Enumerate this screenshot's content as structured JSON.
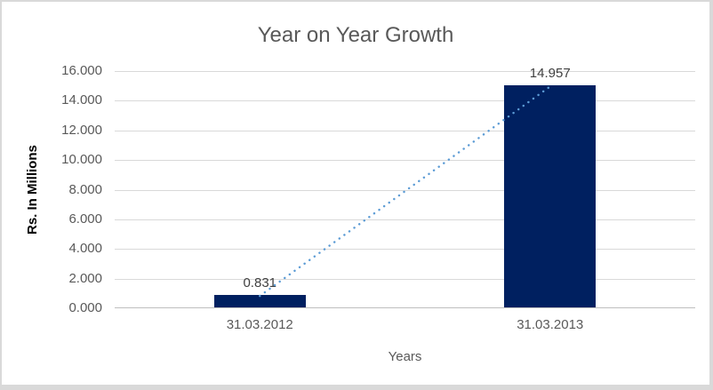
{
  "chart_data": {
    "type": "bar",
    "title": "Year on Year Growth",
    "categories": [
      "31.03.2012",
      "31.03.2013"
    ],
    "values": [
      0.831,
      14.957
    ],
    "point_labels": [
      "0.831",
      "14.957"
    ],
    "xlabel": "Years",
    "ylabel": "Rs. In Millions",
    "ylim": [
      0,
      16
    ],
    "ytick_labels": [
      "0.000",
      "2.000",
      "4.000",
      "6.000",
      "8.000",
      "10.000",
      "12.000",
      "14.000",
      "16.000"
    ],
    "grid": true,
    "legend": "none",
    "trendline": {
      "style": "dotted",
      "color": "#5B9BD5",
      "connects": "bar tops from 0.831 to 14.957"
    },
    "colors": {
      "bar": "#002060",
      "gridline": "#D9D9D9",
      "axis_line": "#BFBFBF",
      "title_text": "#595959",
      "tick_text": "#595959",
      "data_label_text": "#404040",
      "y_axis_title_text": "#000000",
      "chart_border": "#D9D9D9",
      "background": "#FFFFFF"
    }
  }
}
